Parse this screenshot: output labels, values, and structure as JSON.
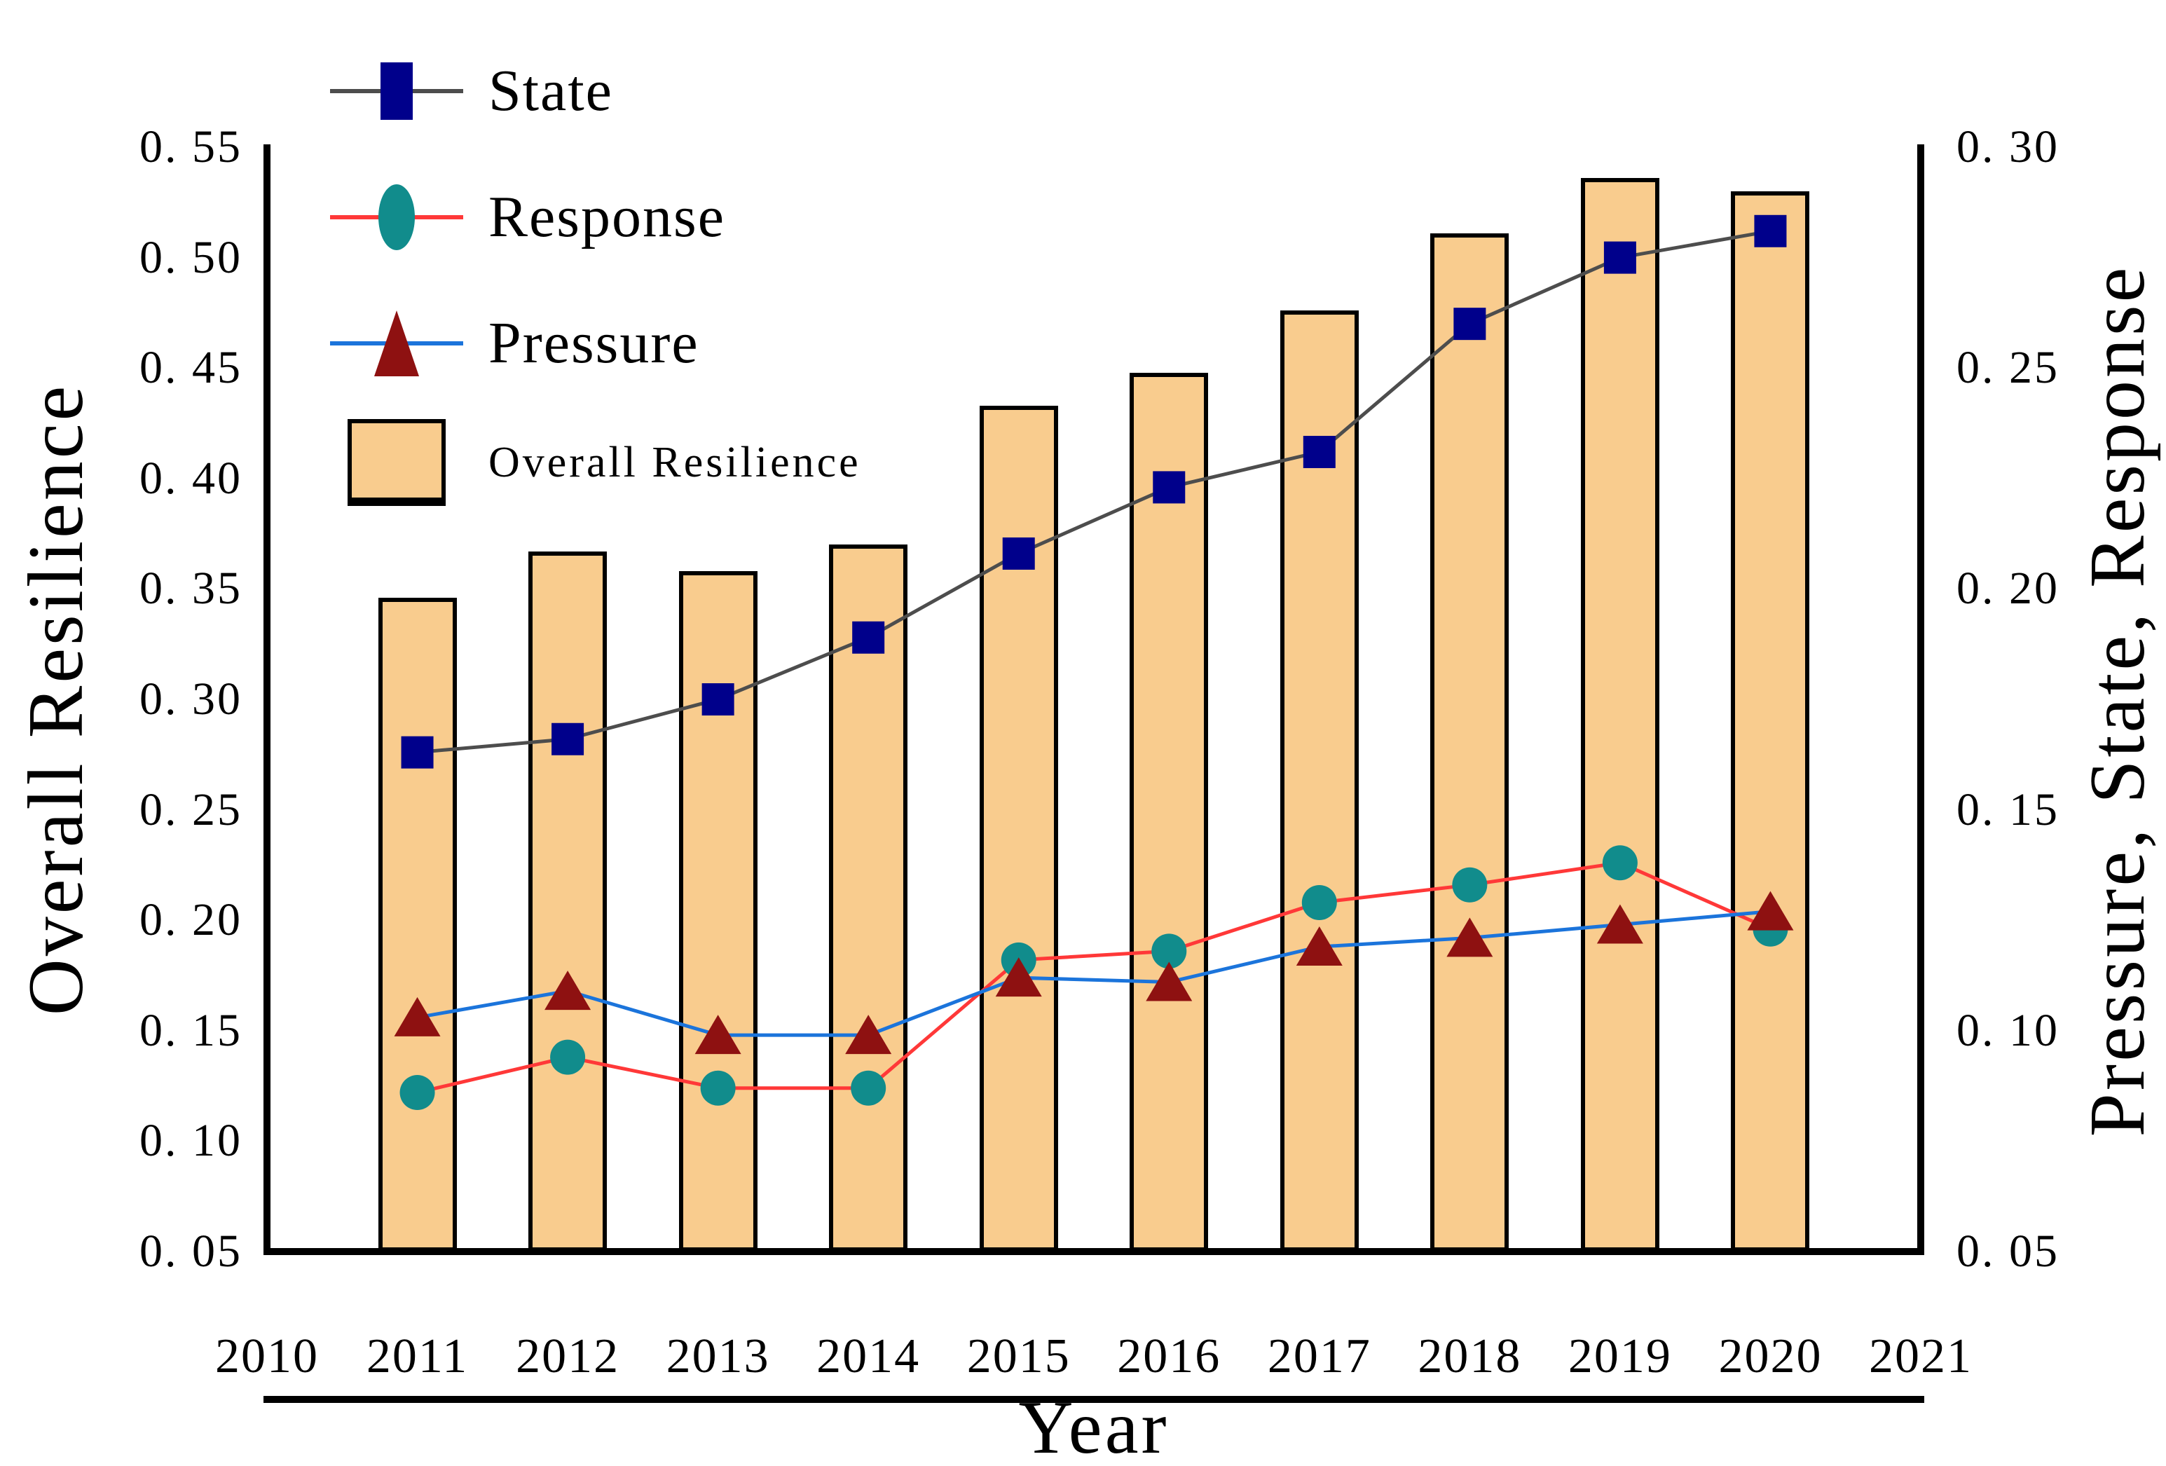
{
  "chart_data": {
    "type": "bar",
    "subtype": "combo-bar-and-lines",
    "x": [
      2011,
      2012,
      2013,
      2014,
      2015,
      2016,
      2017,
      2018,
      2019,
      2020
    ],
    "x_axis": {
      "label": "Year",
      "range": [
        2010,
        2021
      ],
      "tick_labels": [
        "2010",
        "2011",
        "2012",
        "2013",
        "2014",
        "2015",
        "2016",
        "2017",
        "2018",
        "2019",
        "2020",
        "2021"
      ],
      "tick_values": [
        2010,
        2011,
        2012,
        2013,
        2014,
        2015,
        2016,
        2017,
        2018,
        2019,
        2020,
        2021
      ]
    },
    "left_axis": {
      "label": "Overall Resilience",
      "range": [
        0.05,
        0.55
      ],
      "tick_step": 0.05,
      "tick_values": [
        0.05,
        0.1,
        0.15,
        0.2,
        0.25,
        0.3,
        0.35,
        0.4,
        0.45,
        0.5,
        0.55
      ],
      "tick_labels": [
        "0. 05",
        "0. 10",
        "0. 15",
        "0. 20",
        "0. 25",
        "0. 30",
        "0. 35",
        "0. 40",
        "0. 45",
        "0. 50",
        "0. 55"
      ]
    },
    "right_axis": {
      "label": "Pressure, State, Response",
      "range": [
        0.05,
        0.3
      ],
      "tick_step": 0.05,
      "tick_values": [
        0.05,
        0.1,
        0.15,
        0.2,
        0.25,
        0.3
      ],
      "tick_labels": [
        "0. 05",
        "0. 10",
        "0. 15",
        "0. 20",
        "0. 25",
        "0. 30"
      ]
    },
    "grid": "off",
    "legend_position": "upper-left-inside",
    "series": [
      {
        "name": "State",
        "type": "line",
        "axis": "right",
        "marker": "square",
        "marker_color": "#00008B",
        "line_color": "#4D4D4D",
        "values": [
          0.163,
          0.166,
          0.175,
          0.189,
          0.208,
          0.223,
          0.231,
          0.26,
          0.275,
          0.281
        ]
      },
      {
        "name": "Response",
        "type": "line",
        "axis": "right",
        "marker": "circle",
        "marker_color": "#118C8C",
        "line_color": "#FF3838",
        "values": [
          0.086,
          0.094,
          0.087,
          0.087,
          0.116,
          0.118,
          0.129,
          0.133,
          0.138,
          0.123
        ]
      },
      {
        "name": "Pressure",
        "type": "line",
        "axis": "right",
        "marker": "triangle-up",
        "marker_color": "#8E1111",
        "line_color": "#1B74DB",
        "values": [
          0.103,
          0.109,
          0.099,
          0.099,
          0.112,
          0.111,
          0.119,
          0.121,
          0.124,
          0.127
        ]
      },
      {
        "name": "Overall Resilience",
        "type": "bar",
        "axis": "left",
        "fill_color": "#F9CC8E",
        "edge_color": "#000000",
        "values": [
          0.346,
          0.367,
          0.358,
          0.37,
          0.433,
          0.448,
          0.476,
          0.511,
          0.536,
          0.53
        ]
      }
    ]
  }
}
